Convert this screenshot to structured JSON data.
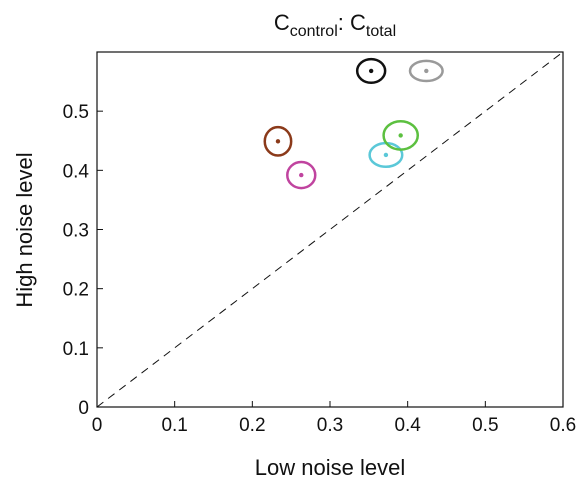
{
  "chart_data": {
    "type": "scatter",
    "title": [
      "C",
      "control",
      ": C",
      "total"
    ],
    "x_label": "Low noise level",
    "y_label": "High noise level",
    "xlim": [
      0,
      0.6
    ],
    "ylim": [
      0,
      0.6
    ],
    "xticks": [
      0,
      0.1,
      0.2,
      0.3,
      0.4,
      0.5,
      0.6
    ],
    "yticks": [
      0,
      0.1,
      0.2,
      0.3,
      0.4,
      0.5
    ],
    "series": [
      {
        "color": "#111111",
        "x": [
          0.353
        ],
        "values": [
          0.568
        ],
        "xerr": [
          0.018
        ],
        "yerr": [
          0.02
        ]
      },
      {
        "color": "#9a9a9a",
        "x": [
          0.424
        ],
        "values": [
          0.568
        ],
        "xerr": [
          0.021
        ],
        "yerr": [
          0.017
        ]
      },
      {
        "color": "#8b3a1a",
        "x": [
          0.233
        ],
        "values": [
          0.449
        ],
        "xerr": [
          0.017
        ],
        "yerr": [
          0.024
        ]
      },
      {
        "color": "#c0449f",
        "x": [
          0.263
        ],
        "values": [
          0.392
        ],
        "xerr": [
          0.018
        ],
        "yerr": [
          0.022
        ]
      },
      {
        "color": "#5bc8d8",
        "x": [
          0.372
        ],
        "values": [
          0.426
        ],
        "xerr": [
          0.021
        ],
        "yerr": [
          0.02
        ]
      },
      {
        "color": "#5cc040",
        "x": [
          0.391
        ],
        "values": [
          0.459
        ],
        "xerr": [
          0.022
        ],
        "yerr": [
          0.024
        ]
      }
    ]
  }
}
